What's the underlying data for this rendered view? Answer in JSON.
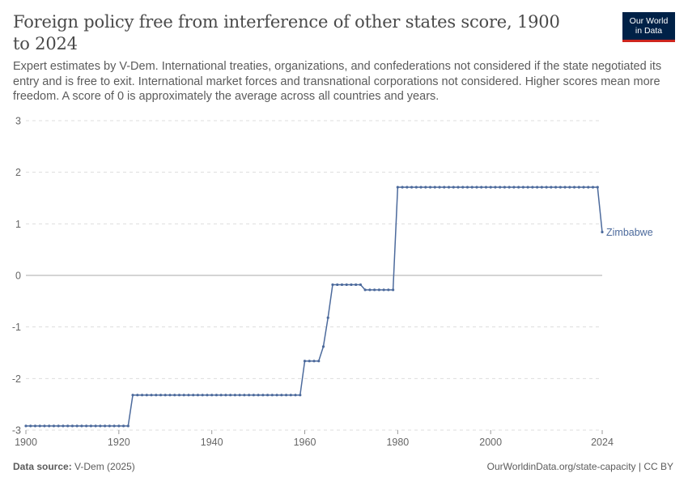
{
  "header": {
    "title": "Foreign policy free from interference of other states score, 1900 to 2024",
    "subtitle": "Expert estimates by V-Dem. International treaties, organizations, and confederations not considered if the state negotiated its entry and is free to exit. International market forces and transnational corporations not considered. Higher scores mean more freedom. A score of 0 is approximately the average across all countries and years.",
    "logo_line1": "Our World",
    "logo_line2": "in Data"
  },
  "footer": {
    "source_label": "Data source:",
    "source_value": "V-Dem (2025)",
    "credit": "OurWorldinData.org/state-capacity | CC BY"
  },
  "colors": {
    "series": "#4c6a9c",
    "grid": "#dddddd",
    "zero_line": "#aaaaaa",
    "logo_bg": "#002147",
    "logo_accent": "#ce261e"
  },
  "chart_data": {
    "type": "line",
    "title": "Foreign policy free from interference of other states score, 1900 to 2024",
    "xlabel": "",
    "ylabel": "",
    "xlim": [
      1900,
      2024
    ],
    "ylim": [
      -3,
      3
    ],
    "x_ticks": [
      1900,
      1920,
      1940,
      1960,
      1980,
      2000,
      2024
    ],
    "y_ticks": [
      3,
      2,
      1,
      0,
      -1,
      -2,
      -3
    ],
    "grid": true,
    "legend": "end-of-line label",
    "series": [
      {
        "name": "Zimbabwe",
        "segments": [
          {
            "from": 1900,
            "to": 1922,
            "value": -2.92
          },
          {
            "from": 1923,
            "to": 1959,
            "value": -2.32
          },
          {
            "from": 1960,
            "to": 1963,
            "value": -1.66
          },
          {
            "from": 1964,
            "to": 1964,
            "value": -1.38
          },
          {
            "from": 1965,
            "to": 1965,
            "value": -0.82
          },
          {
            "from": 1966,
            "to": 1972,
            "value": -0.18
          },
          {
            "from": 1973,
            "to": 1979,
            "value": -0.28
          },
          {
            "from": 1980,
            "to": 2023,
            "value": 1.71
          },
          {
            "from": 2024,
            "to": 2024,
            "value": 0.84
          }
        ]
      }
    ]
  }
}
